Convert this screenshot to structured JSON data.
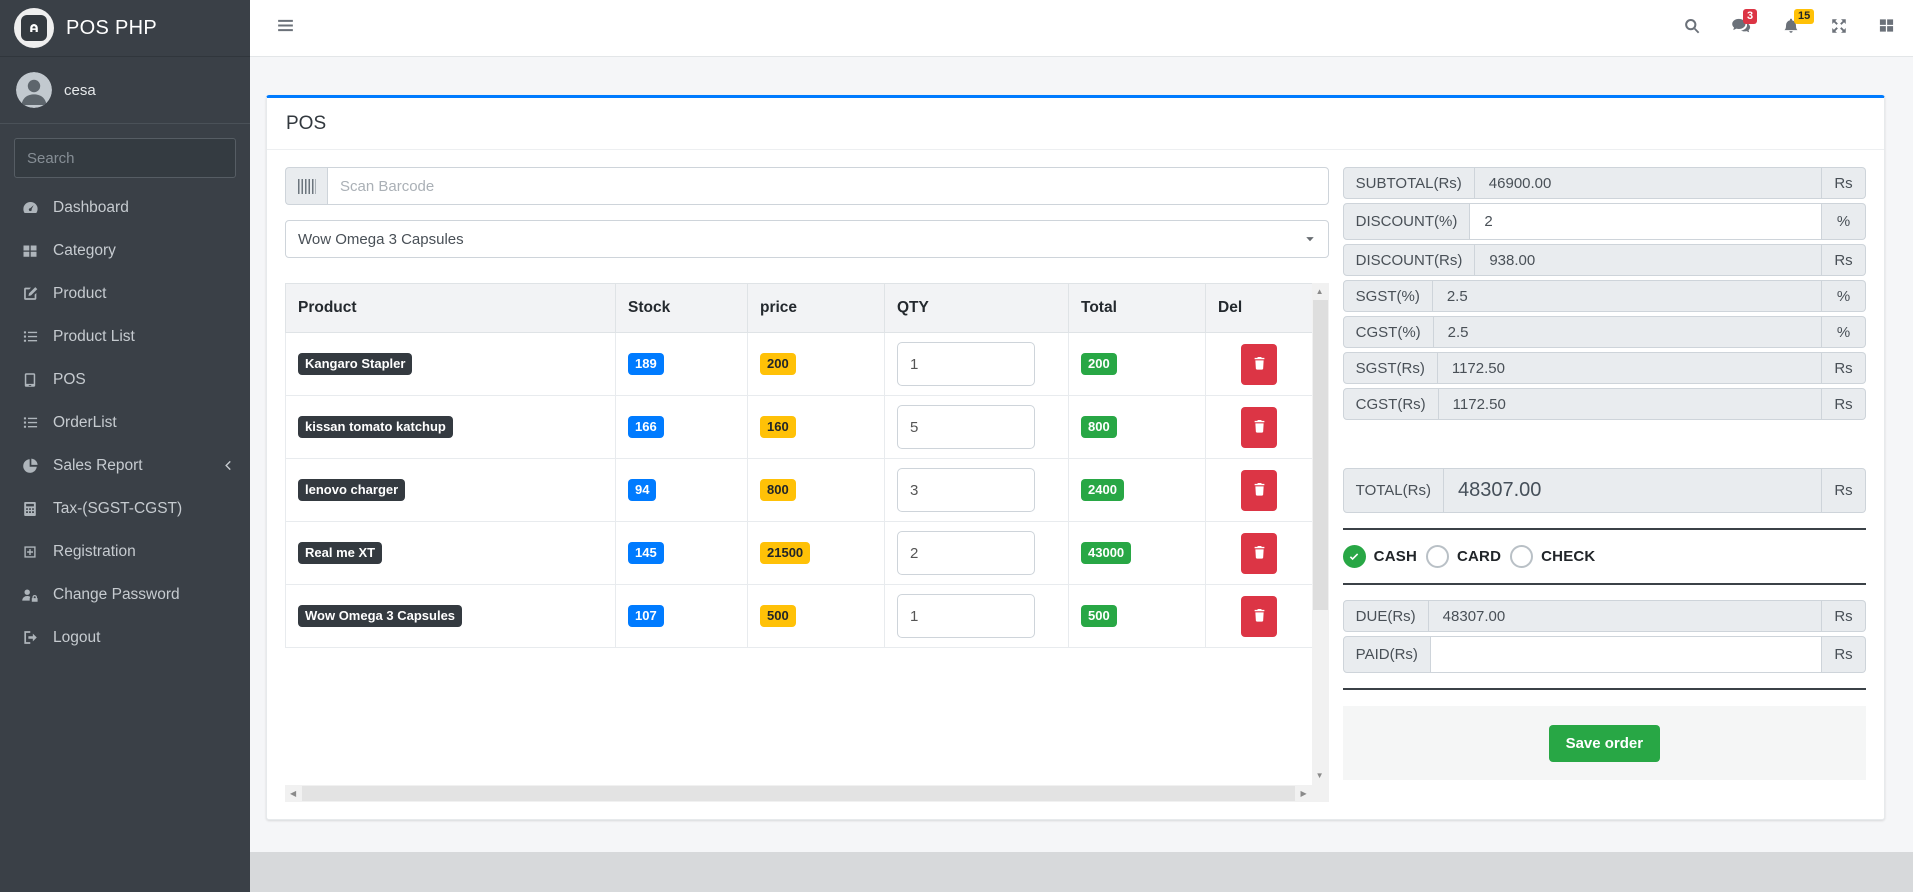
{
  "app": {
    "brand": "POS PHP",
    "user": "cesa"
  },
  "sidebar": {
    "search_placeholder": "Search",
    "items": [
      {
        "label": "Dashboard",
        "icon": "tachometer"
      },
      {
        "label": "Category",
        "icon": "th-large"
      },
      {
        "label": "Product",
        "icon": "edit"
      },
      {
        "label": "Product List",
        "icon": "list"
      },
      {
        "label": "POS",
        "icon": "tablet"
      },
      {
        "label": "OrderList",
        "icon": "list"
      },
      {
        "label": "Sales Report",
        "icon": "pie",
        "has_chevron": true
      },
      {
        "label": "Tax-(SGST-CGST)",
        "icon": "calculator"
      },
      {
        "label": "Registration",
        "icon": "plus-square"
      },
      {
        "label": "Change Password",
        "icon": "user-lock"
      },
      {
        "label": "Logout",
        "icon": "logout"
      }
    ]
  },
  "header": {
    "messages_badge": "3",
    "notifications_badge": "15"
  },
  "pos": {
    "title": "POS",
    "scan_placeholder": "Scan Barcode",
    "product_select": "Wow Omega 3 Capsules",
    "table": {
      "columns": [
        "Product",
        "Stock",
        "price",
        "QTY",
        "Total",
        "Del"
      ],
      "rows": [
        {
          "product": "Kangaro Stapler",
          "stock": "189",
          "price": "200",
          "qty": "1",
          "total": "200"
        },
        {
          "product": "kissan tomato katchup",
          "stock": "166",
          "price": "160",
          "qty": "5",
          "total": "800"
        },
        {
          "product": "lenovo charger",
          "stock": "94",
          "price": "800",
          "qty": "3",
          "total": "2400"
        },
        {
          "product": "Real me XT",
          "stock": "145",
          "price": "21500",
          "qty": "2",
          "total": "43000"
        },
        {
          "product": "Wow Omega 3 Capsules",
          "stock": "107",
          "price": "500",
          "qty": "1",
          "total": "500"
        }
      ]
    },
    "summary": {
      "rows": [
        {
          "label": "SUBTOTAL(Rs)",
          "value": "46900.00",
          "suffix": "Rs",
          "editable": false
        },
        {
          "label": "DISCOUNT(%)",
          "value": "2",
          "suffix": "%",
          "editable": true
        },
        {
          "label": "DISCOUNT(Rs)",
          "value": "938.00",
          "suffix": "Rs",
          "editable": false
        },
        {
          "label": "SGST(%)",
          "value": "2.5",
          "suffix": "%",
          "editable": false
        },
        {
          "label": "CGST(%)",
          "value": "2.5",
          "suffix": "%",
          "editable": false
        },
        {
          "label": "SGST(Rs)",
          "value": "1172.50",
          "suffix": "Rs",
          "editable": false
        },
        {
          "label": "CGST(Rs)",
          "value": "1172.50",
          "suffix": "Rs",
          "editable": false
        }
      ],
      "total": {
        "label": "TOTAL(Rs)",
        "value": "48307.00",
        "suffix": "Rs"
      },
      "payment_methods": [
        {
          "label": "CASH",
          "checked": true
        },
        {
          "label": "CARD",
          "checked": false
        },
        {
          "label": "CHECK",
          "checked": false
        }
      ],
      "due": {
        "label": "DUE(Rs)",
        "value": "48307.00",
        "suffix": "Rs"
      },
      "paid": {
        "label": "PAID(Rs)",
        "value": "",
        "suffix": "Rs"
      },
      "save_label": "Save order"
    }
  },
  "colors": {
    "primary": "#007bff",
    "success": "#28a745",
    "danger": "#dc3545",
    "warning": "#ffc107",
    "dark": "#343a40",
    "sidebar_bg": "#3a4047"
  }
}
